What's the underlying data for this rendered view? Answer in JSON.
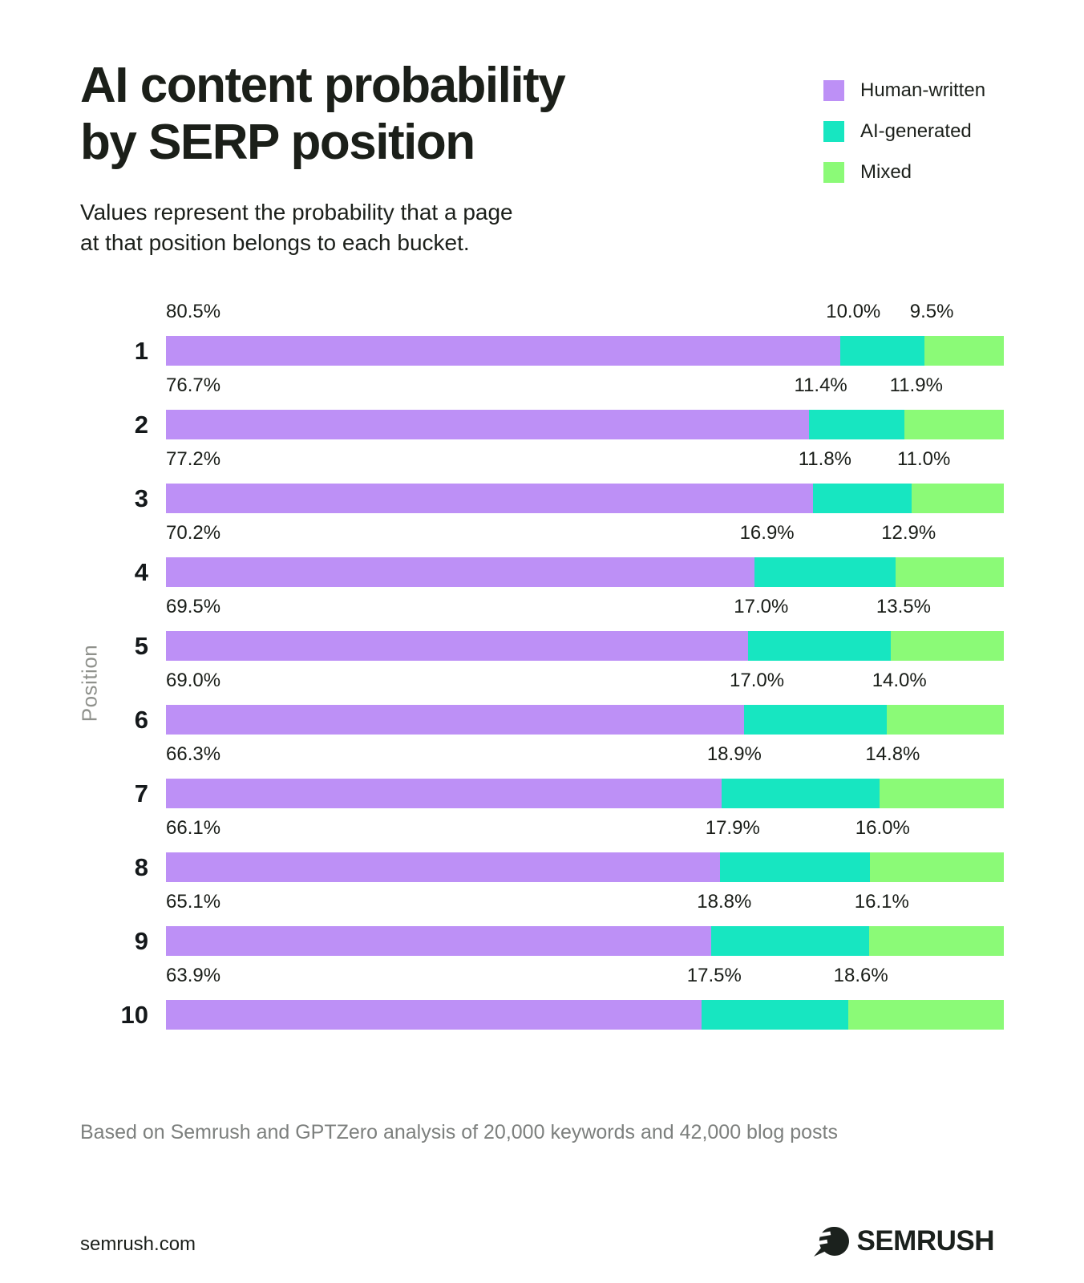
{
  "header": {
    "title_line1": "AI content probability",
    "title_line2": "by SERP position",
    "subtitle_line1": "Values represent the probability that a page",
    "subtitle_line2": "at that position belongs to each bucket."
  },
  "colors": {
    "human_written": "#BD90F6",
    "ai_generated": "#17E6C1",
    "mixed": "#8BFA77",
    "text_dark": "#1b1f19",
    "axis_grey": "#8f918c",
    "footnote_grey": "#7d807e"
  },
  "chart_data": {
    "type": "bar",
    "orientation": "horizontal-stacked",
    "ylabel": "Position",
    "value_suffix": "%",
    "xlim": [
      0,
      100
    ],
    "grid": false,
    "legend_position": "top-right",
    "categories": [
      "1",
      "2",
      "3",
      "4",
      "5",
      "6",
      "7",
      "8",
      "9",
      "10"
    ],
    "series": [
      {
        "name": "Human-written",
        "color": "#BD90F6",
        "values": [
          80.5,
          76.7,
          77.2,
          70.2,
          69.5,
          69.0,
          66.3,
          66.1,
          65.1,
          63.9
        ]
      },
      {
        "name": "AI-generated",
        "color": "#17E6C1",
        "values": [
          10.0,
          11.4,
          11.8,
          16.9,
          17.0,
          17.0,
          18.9,
          17.9,
          18.8,
          17.5
        ]
      },
      {
        "name": "Mixed",
        "color": "#8BFA77",
        "values": [
          9.5,
          11.9,
          11.0,
          12.9,
          13.5,
          14.0,
          14.8,
          16.0,
          16.1,
          18.6
        ]
      }
    ]
  },
  "footnote": "Based on Semrush and GPTZero analysis of 20,000 keywords and 42,000 blog posts",
  "footer": {
    "site": "semrush.com",
    "brand": "SEMRUSH"
  }
}
